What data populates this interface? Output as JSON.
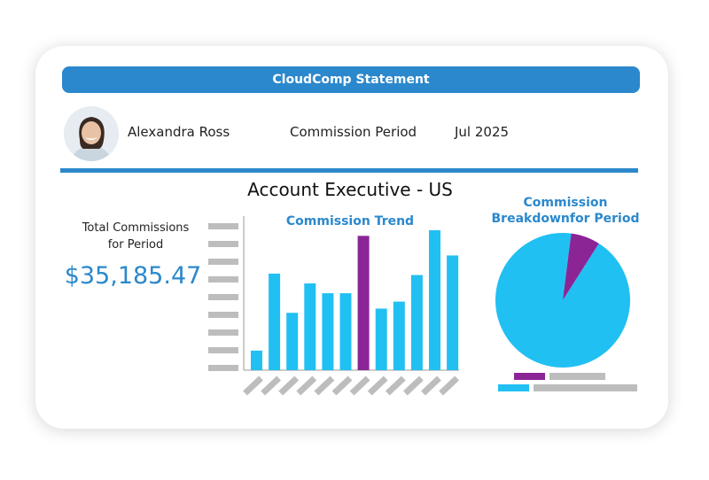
{
  "statement": {
    "title": "CloudComp Statement",
    "employee_name": "Alexandra Ross",
    "period_label": "Commission Period",
    "period_value": "Jul 2025",
    "role": "Account Executive - US"
  },
  "totals": {
    "label_line1": "Total Commissions",
    "label_line2": "for Period",
    "value": "$35,185.47"
  },
  "colors": {
    "accent": "#2b88cc",
    "bar": "#21c0f2",
    "highlight": "#8b2596",
    "placeholder": "#bdbdbd"
  },
  "chart_data": [
    {
      "type": "bar",
      "title": "Commission Trend",
      "categories": [
        "",
        "",
        "",
        "",
        "",
        "",
        "",
        "",
        "",
        "",
        "",
        ""
      ],
      "values": [
        14,
        69,
        41,
        62,
        55,
        55,
        96,
        44,
        49,
        68,
        100,
        82
      ],
      "highlight_index": 6,
      "ylim": [
        0,
        100
      ],
      "grid": false
    },
    {
      "type": "pie",
      "title": "Commission\nBreakdownfor Period",
      "values": [
        93,
        7
      ],
      "colors": [
        "#21c0f2",
        "#8b2596"
      ],
      "legend": "bottom"
    }
  ]
}
